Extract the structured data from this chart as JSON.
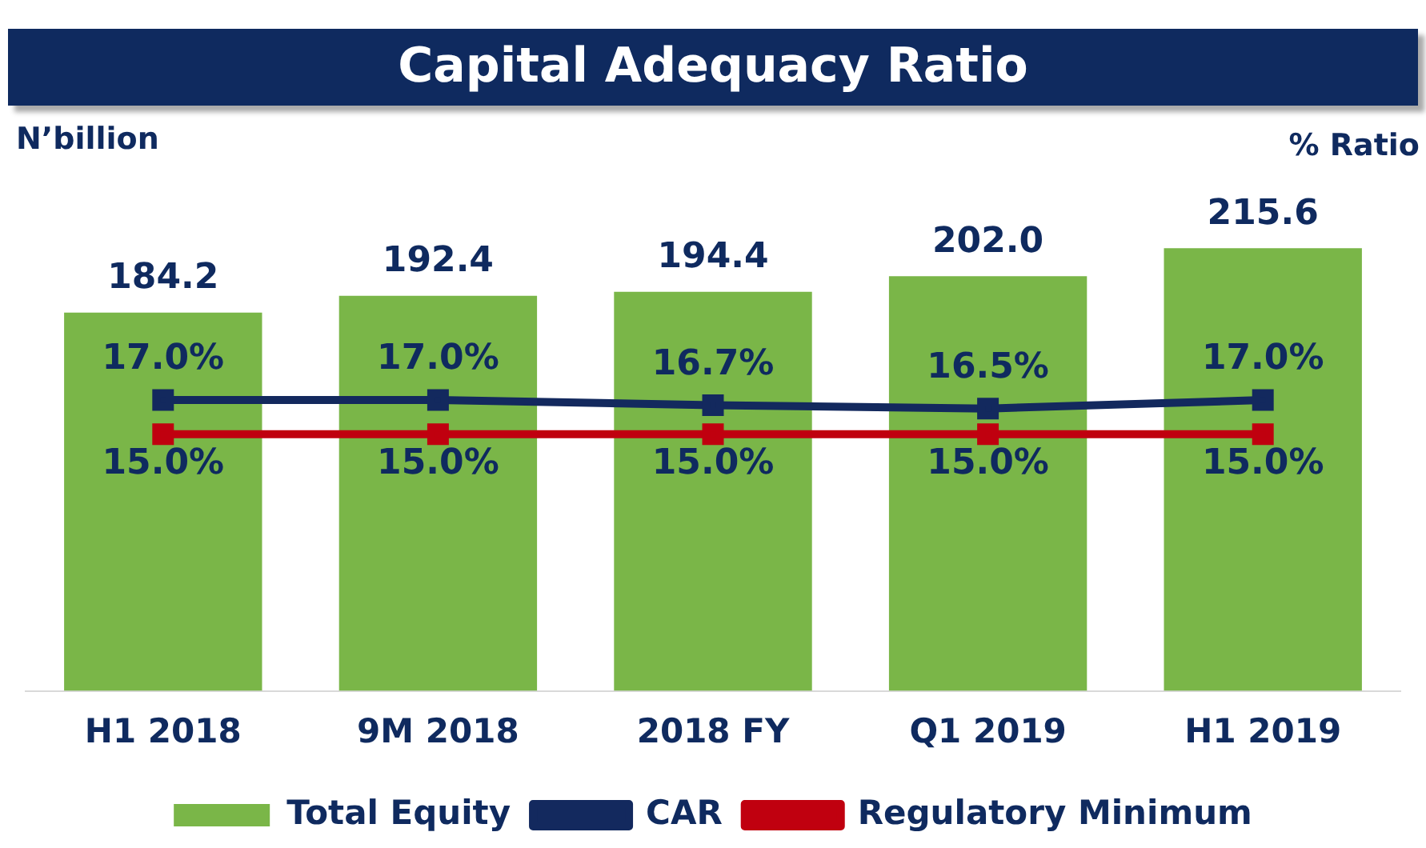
{
  "chart_data": {
    "type": "bar",
    "title": "Capital Adequacy Ratio",
    "ylabel": "N’billion",
    "y2label": "% Ratio",
    "categories": [
      "H1 2018",
      "9M 2018",
      "2018 FY",
      "Q1 2019",
      "H1 2019"
    ],
    "series": [
      {
        "name": "Total Equity",
        "color": "#7ab648",
        "values": [
          184.2,
          192.4,
          194.4,
          202.0,
          215.6
        ],
        "value_labels": [
          "184.2",
          "192.4",
          "194.4",
          "202.0",
          "215.6"
        ]
      },
      {
        "name": "CAR",
        "type": "line",
        "axis": "y2",
        "color": "#13295e",
        "values": [
          17.0,
          17.0,
          16.7,
          16.5,
          17.0
        ],
        "value_labels": [
          "17.0%",
          "17.0%",
          "16.7%",
          "16.5%",
          "17.0%"
        ]
      },
      {
        "name": "Regulatory Minimum",
        "type": "line",
        "axis": "y2",
        "color": "#c0000f",
        "values": [
          15.0,
          15.0,
          15.0,
          15.0,
          15.0
        ],
        "value_labels": [
          "15.0%",
          "15.0%",
          "15.0%",
          "15.0%",
          "15.0%"
        ]
      }
    ],
    "tick_labels": "x",
    "grid": false,
    "legend": "bottom",
    "marker": "square"
  }
}
